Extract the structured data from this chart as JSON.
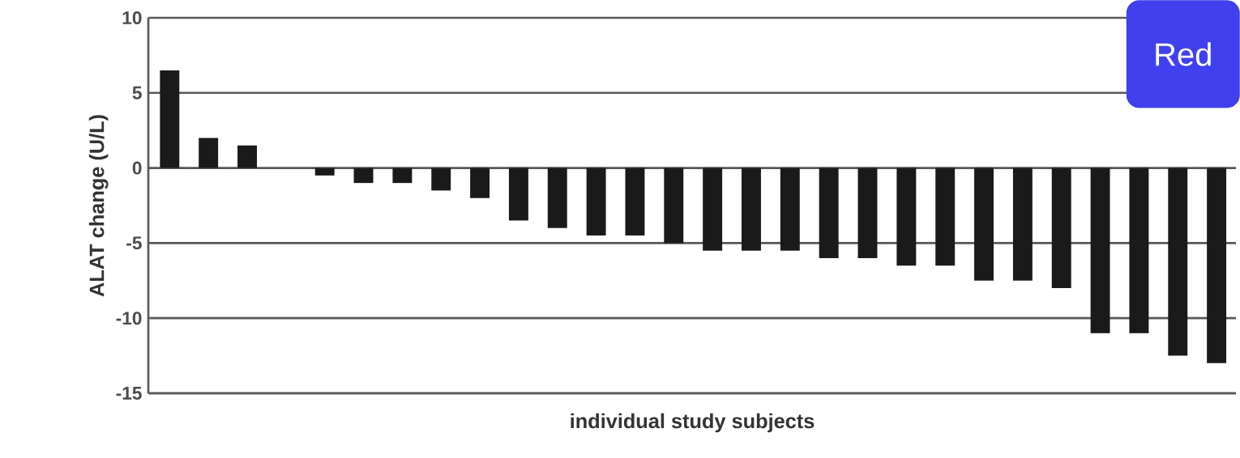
{
  "chart_data": {
    "type": "bar",
    "xlabel": "individual study subjects",
    "ylabel": "ALAT change (U/L)",
    "categories": [
      null,
      null,
      null,
      null,
      null,
      null,
      null,
      null,
      null,
      null,
      null,
      null,
      null,
      null,
      null,
      null,
      null,
      null,
      null,
      null,
      null,
      null,
      null,
      null,
      null,
      null,
      null,
      null
    ],
    "values": [
      6.5,
      2,
      1.5,
      0,
      -0.5,
      -1,
      -1,
      -1.5,
      -2,
      -3.5,
      -4,
      -4.5,
      -4.5,
      -5,
      -5.5,
      -5.5,
      -5.5,
      -6,
      -6,
      -6.5,
      -6.5,
      -7.5,
      -7.5,
      -8,
      -11,
      -11,
      -12.5,
      -13
    ],
    "color": "#1a1a1a",
    "ylim": [
      -15,
      10
    ],
    "yticks": [
      -15,
      -10,
      -5,
      0,
      5,
      10
    ],
    "grid": "y",
    "annotations": [
      "Red"
    ]
  }
}
